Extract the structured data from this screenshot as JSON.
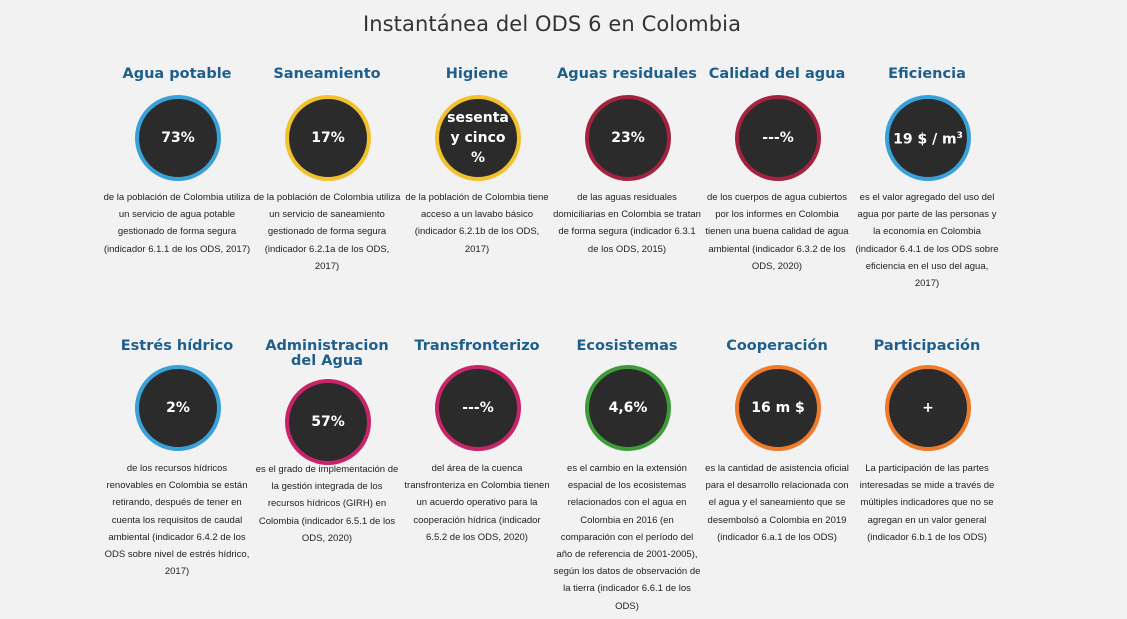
{
  "page_title": "Instantánea del ODS 6 en Colombia",
  "cards": [
    {
      "title": "Agua potable",
      "value": "73%",
      "desc": "de la población de Colombia utiliza un servicio de agua potable gestionado de forma segura (indicador 6.1.1 de los ODS, 2017)",
      "ring_color": "#3aa0d8"
    },
    {
      "title": "Saneamiento",
      "value": "17%",
      "desc": "de la población de Colombia utiliza un servicio de saneamiento gestionado de forma segura (indicador 6.2.1a de los ODS, 2017)",
      "ring_color": "#f2c12e"
    },
    {
      "title": "Higiene",
      "value": "sesenta y cinco %",
      "desc": "de la población de Colombia tiene acceso a un lavabo básico (indicador 6.2.1b de los ODS, 2017)",
      "ring_color": "#f2c12e"
    },
    {
      "title": "Aguas residuales",
      "value": "23%",
      "desc": "de las aguas residuales domiciliarias en Colombia se tratan de forma segura (indicador 6.3.1 de los ODS, 2015)",
      "ring_color": "#a3233f"
    },
    {
      "title": "Calidad del agua",
      "value": "---%",
      "desc": "de los cuerpos de agua cubiertos por los informes en Colombia tienen una buena calidad de agua ambiental (indicador 6.3.2 de los ODS, 2020)",
      "ring_color": "#a3233f"
    },
    {
      "title": "Eficiencia",
      "value": "19 $ / m",
      "value_sup": "3",
      "desc": "es el valor agregado del uso del agua por parte de las personas y la economía en Colombia (indicador 6.4.1 de los ODS sobre eficiencia en el uso del agua, 2017)",
      "ring_color": "#3aa0d8"
    },
    {
      "title": "Estrés hídrico",
      "value": "2%",
      "desc": "de los recursos hídricos renovables en Colombia se están retirando, después de tener en cuenta los requisitos de caudal ambiental (indicador 6.4.2 de los ODS sobre nivel de estrés hídrico, 2017)",
      "ring_color": "#3aa0d8"
    },
    {
      "title": "Administracion del Agua",
      "value": "57%",
      "desc": "es el grado de implementación de la gestión integrada de los recursos hídricos (GIRH) en Colombia (indicador 6.5.1 de los ODS, 2020)",
      "ring_color": "#c8246a"
    },
    {
      "title": "Transfronterizo",
      "value": "---%",
      "desc": "del área de la cuenca transfronteriza en Colombia tienen un acuerdo operativo para la cooperación hídrica (indicador 6.5.2 de los ODS, 2020)",
      "ring_color": "#c8246a"
    },
    {
      "title": "Ecosistemas",
      "value": "4,6%",
      "desc": "es el cambio en la extensión espacial de los ecosistemas relacionados con el agua en Colombia en 2016 (en comparación con el período del año de referencia de 2001-2005), según los datos de observación de la tierra (indicador 6.6.1 de los ODS)",
      "ring_color": "#3f9a3a"
    },
    {
      "title": "Cooperación",
      "value": "16 m $",
      "desc": "es la cantidad de asistencia oficial para el desarrollo relacionada con el agua y el saneamiento que se desembolsó a Colombia en 2019 (indicador 6.a.1 de los ODS)",
      "ring_color": "#ef7b2a"
    },
    {
      "title": "Participación",
      "value": "+",
      "desc": "La participación de las partes interesadas se mide a través de múltiples indicadores que no se agregan en un valor general (indicador 6.b.1 de los ODS)",
      "ring_color": "#ef7b2a"
    }
  ]
}
